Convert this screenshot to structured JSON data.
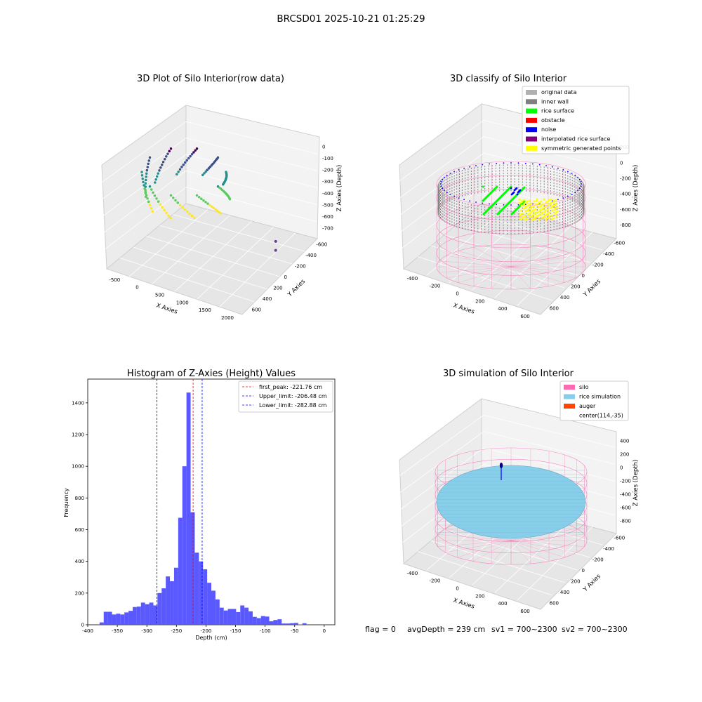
{
  "suptitle": "BRCSD01 2025-10-21 01:25:29",
  "footer": {
    "flag": "flag = 0",
    "avg_depth": "avgDepth = 239 cm",
    "sv1": "sv1 = 700~2300",
    "sv2": "sv2 = 700~2300"
  },
  "colors": {
    "histogram_bar": "#5050ff",
    "first_peak_line": "#ff0000",
    "limit_line": "#0000ff",
    "silo": "#ff69b4",
    "rice_simulation": "#87ceeb",
    "auger": "#ff4500",
    "original_data": "#b0b0b0",
    "inner_wall": "#808080",
    "rice_surface": "#00ff00",
    "obstacle": "#ff0000",
    "noise": "#0000ff",
    "interpolated_rice_surface": "#800080",
    "symmetric_generated_points": "#ffff00"
  },
  "chart_data": [
    {
      "type": "scatter",
      "projection": "3d",
      "title": "3D Plot of Silo Interior(row data)",
      "xlabel": "X Axies",
      "ylabel": "Y Axies",
      "zlabel": "Z Axies (Depth)",
      "xticks": [
        "-500",
        "0",
        "500",
        "1000",
        "1500",
        "2000"
      ],
      "yticks": [
        "-600",
        "-400",
        "-200",
        "0",
        "200",
        "400",
        "600"
      ],
      "zticks": [
        "0",
        "-100",
        "-200",
        "-300",
        "-400",
        "-500",
        "-600",
        "-700"
      ],
      "xlim": [
        -600,
        2050
      ],
      "ylim": [
        -650,
        650
      ],
      "zlim": [
        -750,
        50
      ],
      "colormap": "viridis",
      "outliers": [
        {
          "x": 1950,
          "y": 250,
          "z": -650
        },
        {
          "x": 1950,
          "y": 250,
          "z": -720
        }
      ]
    },
    {
      "type": "scatter",
      "projection": "3d",
      "title": "3D classify of Silo Interior",
      "xlabel": "X Axies",
      "ylabel": "Y Axies",
      "zlabel": "Z Axies (Depth)",
      "xticks": [
        "-400",
        "-200",
        "0",
        "200",
        "400",
        "600"
      ],
      "yticks": [
        "-600",
        "-400",
        "-200",
        "0",
        "200",
        "400",
        "600"
      ],
      "zticks": [
        "200",
        "0",
        "-200",
        "-400",
        "-600",
        "-800"
      ],
      "legend_loc": "upper right",
      "legend": [
        {
          "label": "original data",
          "color": "#b0b0b0"
        },
        {
          "label": "inner wall",
          "color": "#808080"
        },
        {
          "label": "rice surface",
          "color": "#00ff00"
        },
        {
          "label": "obstacle",
          "color": "#ff0000"
        },
        {
          "label": "noise",
          "color": "#0000ff"
        },
        {
          "label": "interpolated rice surface",
          "color": "#800080"
        },
        {
          "label": "symmetric generated points",
          "color": "#ffff00"
        }
      ]
    },
    {
      "type": "bar",
      "title": "Histogram of Z-Axies (Height) Values",
      "xlabel": "Depth (cm)",
      "ylabel": "Frequency",
      "xlim": [
        -400,
        18
      ],
      "ylim": [
        0,
        1550
      ],
      "xticks": [
        -400,
        -350,
        -300,
        -250,
        -200,
        -150,
        -100,
        -50,
        0
      ],
      "yticks": [
        0,
        200,
        400,
        600,
        800,
        1000,
        1200,
        1400
      ],
      "bin_width": 7,
      "bin_start": -380,
      "values": [
        15,
        82,
        82,
        65,
        70,
        65,
        78,
        88,
        112,
        115,
        140,
        130,
        140,
        122,
        200,
        230,
        305,
        275,
        360,
        675,
        1000,
        1465,
        710,
        455,
        400,
        350,
        265,
        215,
        160,
        108,
        90,
        100,
        100,
        80,
        122,
        108,
        85,
        50,
        42,
        55,
        52,
        22,
        30,
        35,
        8,
        8,
        10,
        12,
        2,
        10,
        0
      ],
      "vlines": [
        {
          "label": "first_peak: -221.76 cm",
          "x": -221.76,
          "color": "#ff0000"
        },
        {
          "label": "Upper_limit: -206.48 cm",
          "x": -206.48,
          "color": "#0000ff"
        },
        {
          "label": "Lower_limit: -282.88 cm",
          "x": -282.88,
          "color": "#0000ff"
        }
      ],
      "legend_loc": "upper right"
    },
    {
      "type": "scatter",
      "projection": "3d",
      "title": "3D simulation of Silo Interior",
      "xlabel": "X Axies",
      "ylabel": "Y Axies",
      "zlabel": "Z Axies (Depth)",
      "xticks": [
        "-400",
        "-200",
        "0",
        "200",
        "400",
        "600"
      ],
      "yticks": [
        "-600",
        "-400",
        "-200",
        "0",
        "200",
        "400",
        "600"
      ],
      "zticks": [
        "400",
        "200",
        "0",
        "-200",
        "-400",
        "-600",
        "-800"
      ],
      "legend_loc": "upper right",
      "legend": [
        {
          "label": "silo",
          "color": "#ff69b4"
        },
        {
          "label": "rice simulation",
          "color": "#87ceeb"
        },
        {
          "label": "auger",
          "color": "#ff4500"
        },
        {
          "label": "center(114,-35)",
          "color": ""
        }
      ],
      "center": {
        "x": 114,
        "y": -35
      }
    }
  ]
}
